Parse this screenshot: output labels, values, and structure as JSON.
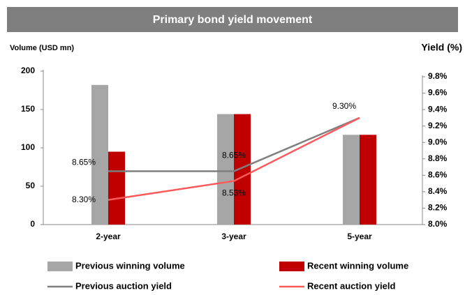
{
  "chart_data": {
    "type": "bar-line",
    "title": "Primary bond yield movement",
    "ylabel": "Volume (USD mn)",
    "y2label": "Yield (%)",
    "categories": [
      "2-year",
      "3-year",
      "5-year"
    ],
    "ylim": [
      0,
      200
    ],
    "yticks": [
      0,
      50,
      100,
      150,
      200
    ],
    "y2lim": [
      8.0,
      9.8
    ],
    "y2ticks": [
      {
        "value": 8.0,
        "label": "8.0%"
      },
      {
        "value": 8.2,
        "label": "8.2%"
      },
      {
        "value": 8.4,
        "label": "8.4%"
      },
      {
        "value": 8.6,
        "label": "8.6%"
      },
      {
        "value": 8.8,
        "label": "8.8%"
      },
      {
        "value": 9.0,
        "label": "9.0%"
      },
      {
        "value": 9.2,
        "label": "9.2%"
      },
      {
        "value": 9.4,
        "label": "9.4%"
      },
      {
        "value": 9.6,
        "label": "9.6%"
      },
      {
        "value": 9.8,
        "label": "9.8%"
      }
    ],
    "series": [
      {
        "name": "Previous winning volume",
        "type": "bar",
        "color": "#a6a6a6",
        "values": [
          182,
          144,
          117
        ]
      },
      {
        "name": "Recent winning volume",
        "type": "bar",
        "color": "#c00000",
        "values": [
          95,
          144,
          117
        ]
      },
      {
        "name": "Previous auction yield",
        "type": "line",
        "axis": "y2",
        "color": "#7f7f7f",
        "values": [
          8.65,
          8.65,
          9.3
        ],
        "value_labels": [
          "8.65%",
          "8.65%",
          "9.30%"
        ]
      },
      {
        "name": "Recent auction yield",
        "type": "line",
        "axis": "y2",
        "color": "#ff5a5a",
        "values": [
          8.3,
          8.53,
          9.3
        ],
        "value_labels": [
          "8.30%",
          "8.53%",
          null
        ]
      }
    ]
  }
}
